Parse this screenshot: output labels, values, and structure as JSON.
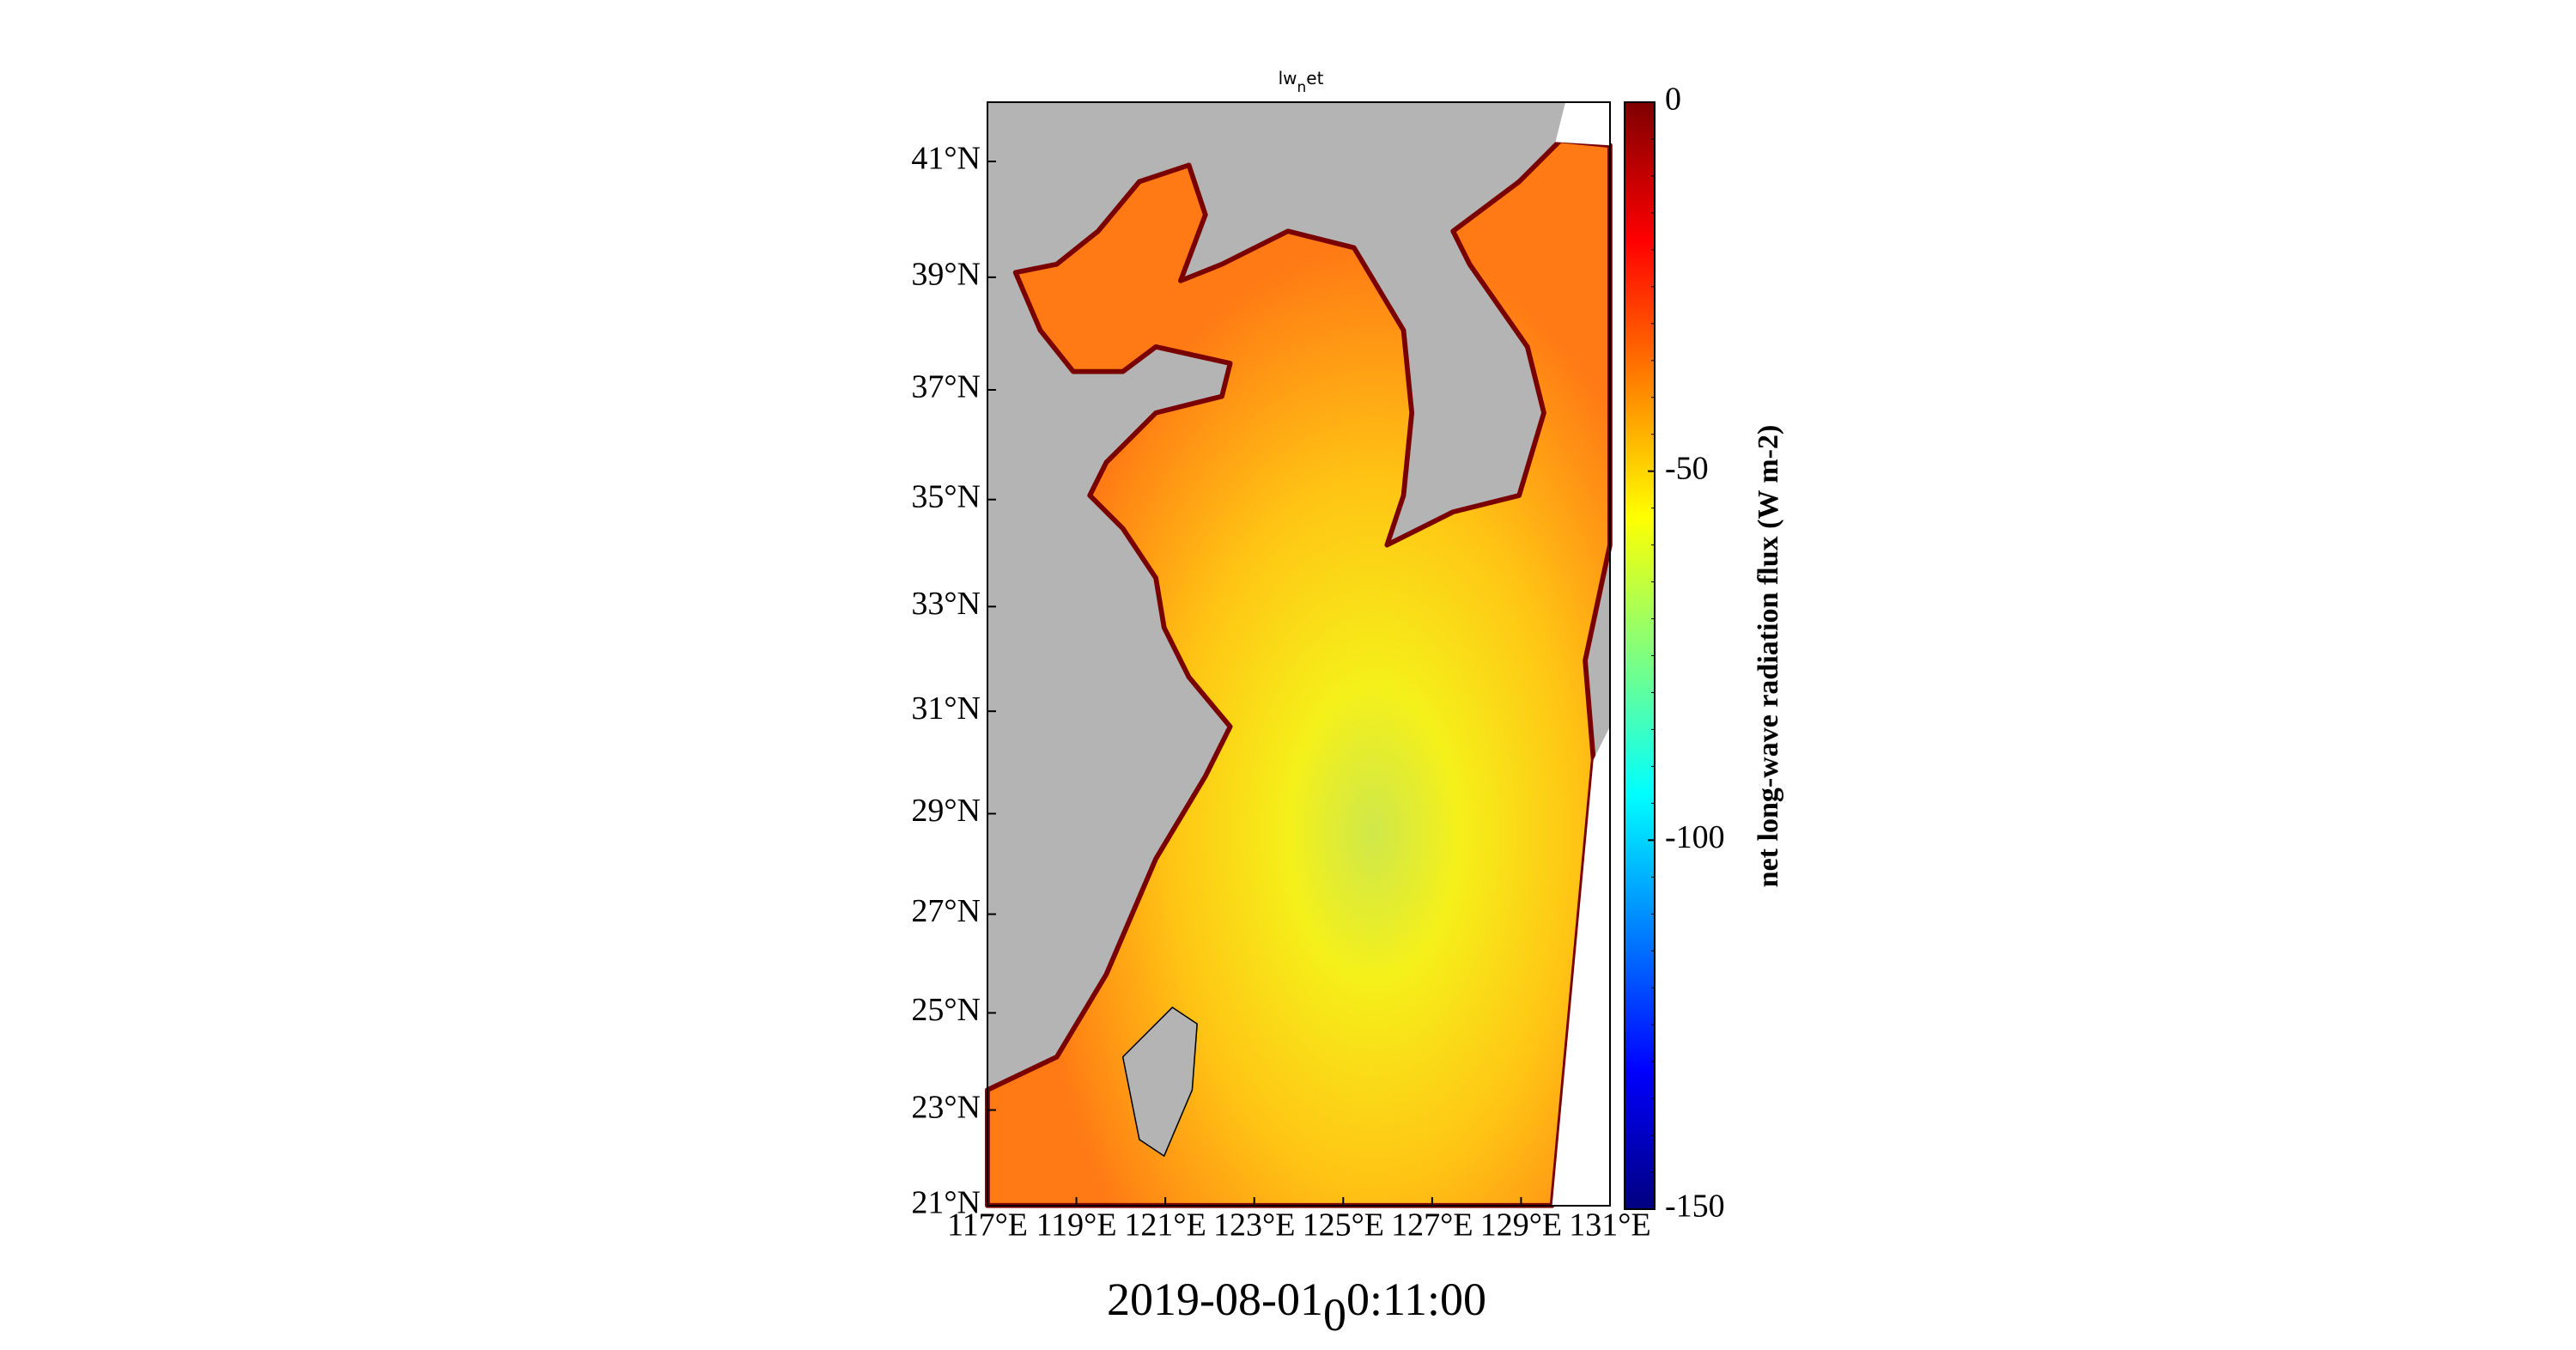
{
  "chart_data": {
    "type": "map",
    "title": {
      "text": "lw",
      "subscript": "n",
      "suffix": "et"
    },
    "timestamp": {
      "text": "2019-08-01",
      "subscript": "0",
      "suffix": "0:11:00"
    },
    "projection": "mercator",
    "xlim": [
      117,
      131
    ],
    "ylim": [
      21,
      42
    ],
    "xticks": [
      {
        "value": 117,
        "label": "117°E"
      },
      {
        "value": 119,
        "label": "119°E"
      },
      {
        "value": 121,
        "label": "121°E"
      },
      {
        "value": 123,
        "label": "123°E"
      },
      {
        "value": 125,
        "label": "125°E"
      },
      {
        "value": 127,
        "label": "127°E"
      },
      {
        "value": 129,
        "label": "129°E"
      },
      {
        "value": 131,
        "label": "131°E"
      }
    ],
    "yticks": [
      {
        "value": 21,
        "label": "21°N"
      },
      {
        "value": 23,
        "label": "23°N"
      },
      {
        "value": 25,
        "label": "25°N"
      },
      {
        "value": 27,
        "label": "27°N"
      },
      {
        "value": 29,
        "label": "29°N"
      },
      {
        "value": 31,
        "label": "31°N"
      },
      {
        "value": 33,
        "label": "33°N"
      },
      {
        "value": 35,
        "label": "35°N"
      },
      {
        "value": 37,
        "label": "37°N"
      },
      {
        "value": 39,
        "label": "39°N"
      },
      {
        "value": 41,
        "label": "41°N"
      }
    ],
    "land_color": "#b4b4b4",
    "colorbar": {
      "label": "net long-wave radiation flux (W m-2)",
      "colormap": "jet",
      "lim": [
        -150,
        0
      ],
      "ticks": [
        0,
        -50,
        -100,
        -150
      ]
    }
  }
}
